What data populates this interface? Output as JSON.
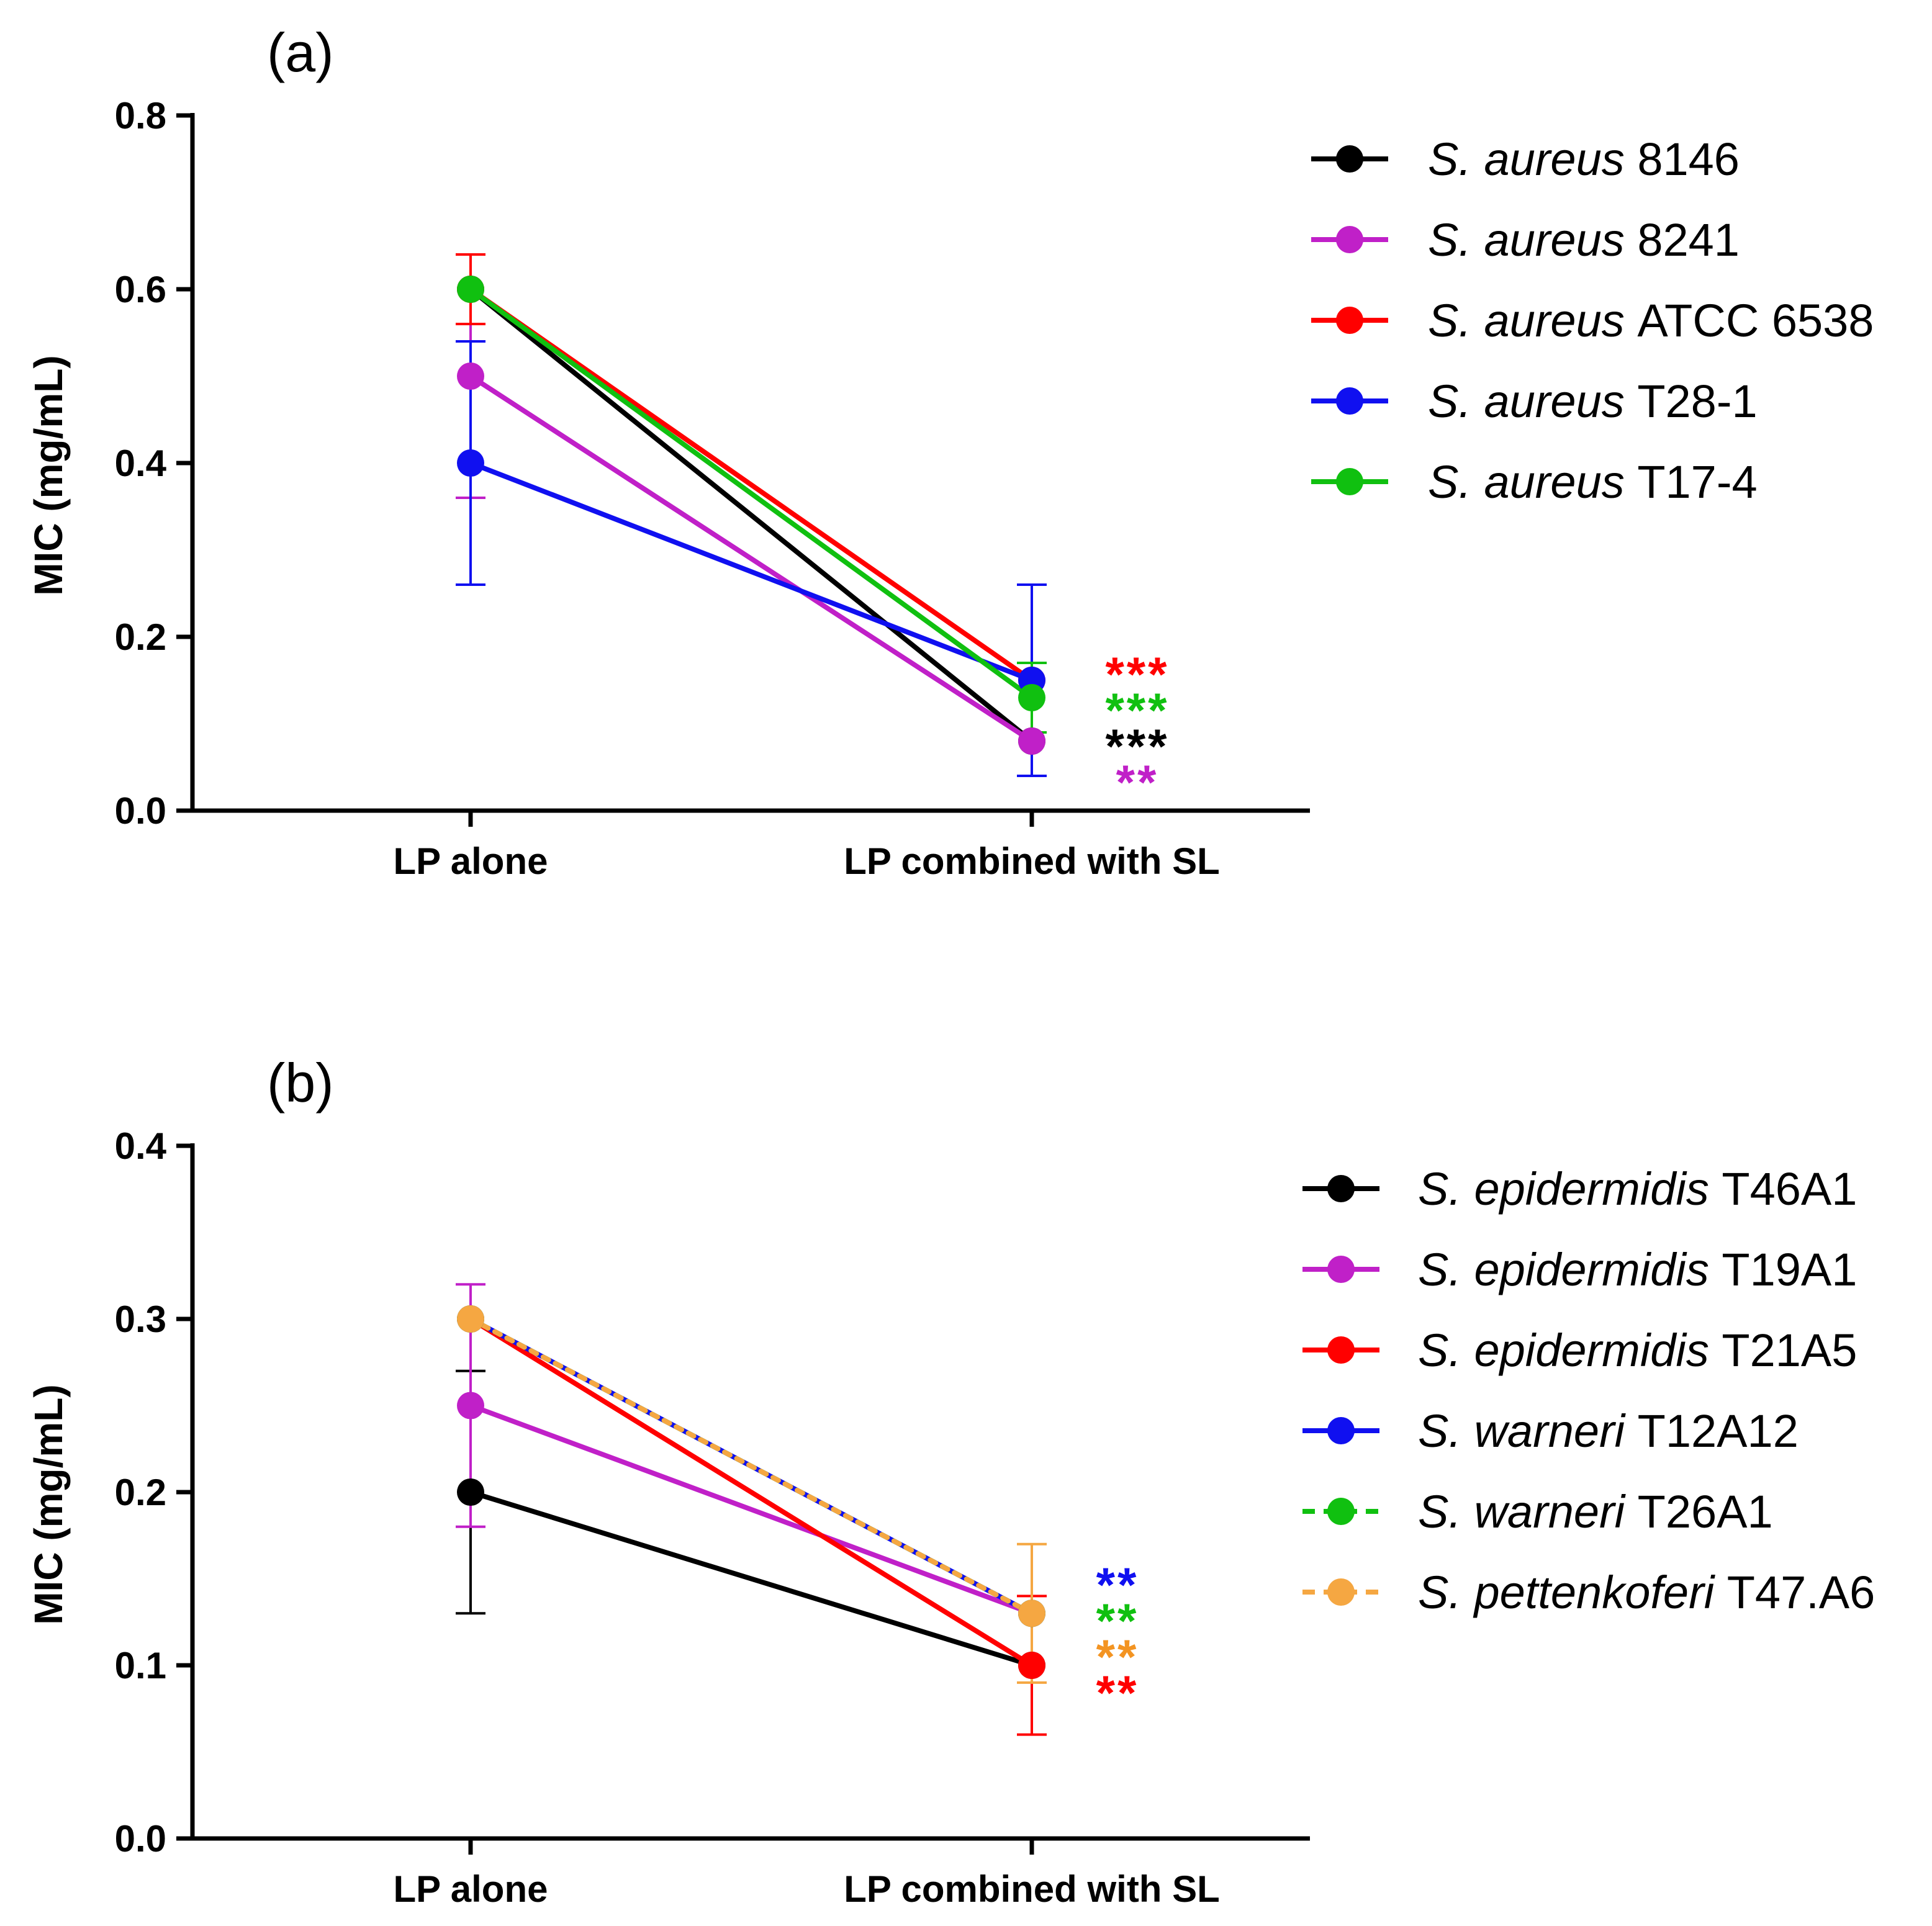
{
  "chart_data": [
    {
      "panel": "(a)",
      "type": "line",
      "categories": [
        "LP alone",
        "LP combined with SL"
      ],
      "ylabel": "MIC (mg/mL)",
      "xlabel": "",
      "ylim": [
        0,
        0.8
      ],
      "yticks": [
        "0.0",
        "0.2",
        "0.4",
        "0.6",
        "0.8"
      ],
      "series": [
        {
          "name": "8146",
          "species": "S. aureus",
          "color": "#000000",
          "dashed": false,
          "values": [
            0.6,
            0.08
          ],
          "errors": [
            0.0,
            0.0
          ]
        },
        {
          "name": "8241",
          "species": "S. aureus",
          "color": "#c020c8",
          "dashed": false,
          "values": [
            0.5,
            0.08
          ],
          "errors": [
            0.14,
            0.0
          ]
        },
        {
          "name": "ATCC 6538",
          "species": "S. aureus",
          "color": "#ff0000",
          "dashed": false,
          "values": [
            0.6,
            0.15
          ],
          "errors": [
            0.04,
            0.0
          ]
        },
        {
          "name": "T28-1",
          "species": "S. aureus",
          "color": "#1010f0",
          "dashed": false,
          "values": [
            0.4,
            0.15
          ],
          "errors": [
            0.14,
            0.11
          ]
        },
        {
          "name": "T17-4",
          "species": "S. aureus",
          "color": "#10c010",
          "dashed": false,
          "values": [
            0.6,
            0.13
          ],
          "errors": [
            0.0,
            0.04
          ]
        }
      ],
      "annotations": [
        {
          "text": "***",
          "color": "#ff0000"
        },
        {
          "text": "***",
          "color": "#10c010"
        },
        {
          "text": "***",
          "color": "#000000"
        },
        {
          "text": "**",
          "color": "#c020c8"
        }
      ]
    },
    {
      "panel": "(b)",
      "type": "line",
      "categories": [
        "LP alone",
        "LP combined with SL"
      ],
      "ylabel": "MIC (mg/mL)",
      "xlabel": "",
      "ylim": [
        0,
        0.4
      ],
      "yticks": [
        "0.0",
        "0.1",
        "0.2",
        "0.3",
        "0.4"
      ],
      "series": [
        {
          "name": "T46A1",
          "species": "S. epidermidis",
          "color": "#000000",
          "dashed": false,
          "values": [
            0.2,
            0.1
          ],
          "errors": [
            0.07,
            0.0
          ]
        },
        {
          "name": "T19A1",
          "species": "S. epidermidis",
          "color": "#c020c8",
          "dashed": false,
          "values": [
            0.25,
            0.13
          ],
          "errors": [
            0.07,
            0.0
          ]
        },
        {
          "name": "T21A5",
          "species": "S. epidermidis",
          "color": "#ff0000",
          "dashed": false,
          "values": [
            0.3,
            0.1
          ],
          "errors": [
            0.0,
            0.04
          ]
        },
        {
          "name": "T12A12",
          "species": "S. warneri",
          "color": "#1010f0",
          "dashed": false,
          "values": [
            0.3,
            0.13
          ],
          "errors": [
            0.0,
            0.0
          ]
        },
        {
          "name": "T26A1",
          "species": "S. warneri",
          "color": "#10c010",
          "dashed": true,
          "values": [
            0.3,
            0.13
          ],
          "errors": [
            0.0,
            0.0
          ]
        },
        {
          "name": "T47.A6",
          "species": "S. pettenkoferi",
          "color": "#f5a742",
          "dashed": true,
          "values": [
            0.3,
            0.13
          ],
          "errors": [
            0.0,
            0.04
          ]
        }
      ],
      "annotations": [
        {
          "text": "**",
          "color": "#1010f0"
        },
        {
          "text": "**",
          "color": "#10c010"
        },
        {
          "text": "**",
          "color": "#f39422"
        },
        {
          "text": "**",
          "color": "#ff0000"
        }
      ]
    }
  ]
}
